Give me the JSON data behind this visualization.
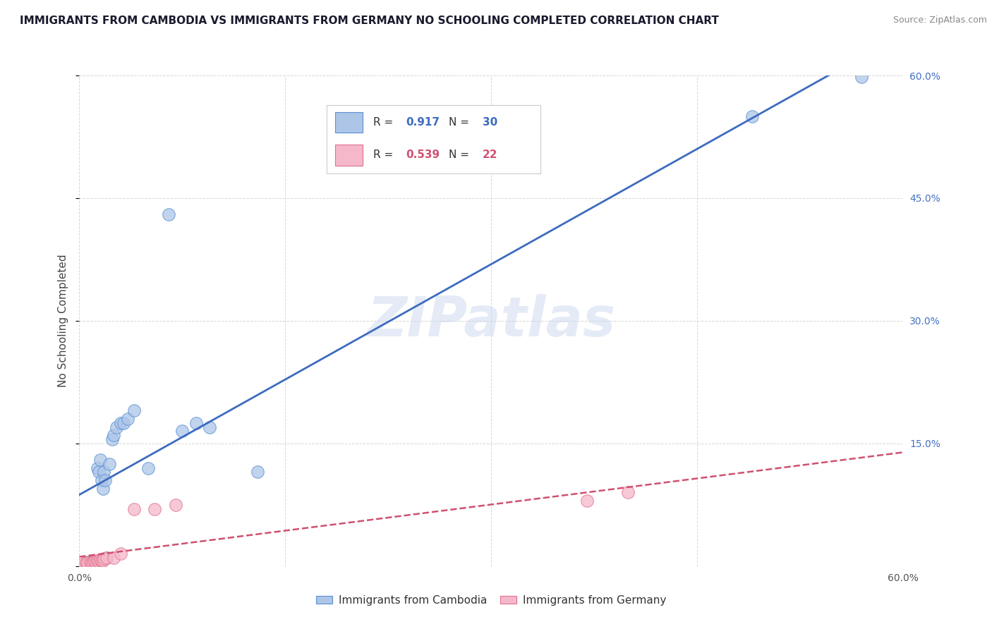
{
  "title": "IMMIGRANTS FROM CAMBODIA VS IMMIGRANTS FROM GERMANY NO SCHOOLING COMPLETED CORRELATION CHART",
  "source_text": "Source: ZipAtlas.com",
  "xlabel_legend": "Immigrants from Cambodia",
  "ylabel_legend": "Immigrants from Germany",
  "ylabel": "No Schooling Completed",
  "xlim": [
    0.0,
    0.6
  ],
  "ylim": [
    0.0,
    0.6
  ],
  "xticks": [
    0.0,
    0.15,
    0.3,
    0.45,
    0.6
  ],
  "yticks": [
    0.0,
    0.15,
    0.3,
    0.45,
    0.6
  ],
  "right_ytick_labels": [
    "",
    "15.0%",
    "30.0%",
    "45.0%",
    "60.0%"
  ],
  "bottom_xtick_labels": [
    "0.0%",
    "",
    "",
    "",
    "60.0%"
  ],
  "watermark": "ZIPatlas",
  "cambodia_R": 0.917,
  "cambodia_N": 30,
  "germany_R": 0.539,
  "germany_N": 22,
  "cambodia_color": "#adc6e8",
  "cambodia_edge_color": "#5b8fd4",
  "cambodia_line_color": "#3d6bbf",
  "germany_color": "#f5b8ca",
  "germany_edge_color": "#e0708a",
  "germany_line_color": "#d05070",
  "background_color": "#ffffff",
  "grid_color": "#cccccc",
  "title_color": "#1a1a2e",
  "right_axis_label_color": "#4472c4",
  "cambodia_x": [
    0.005,
    0.007,
    0.008,
    0.009,
    0.01,
    0.012,
    0.013,
    0.014,
    0.015,
    0.016,
    0.017,
    0.018,
    0.019,
    0.02,
    0.022,
    0.024,
    0.025,
    0.027,
    0.03,
    0.032,
    0.035,
    0.04,
    0.05,
    0.065,
    0.075,
    0.085,
    0.095,
    0.13,
    0.49,
    0.57
  ],
  "cambodia_y": [
    0.003,
    0.005,
    0.006,
    0.004,
    0.005,
    0.006,
    0.12,
    0.115,
    0.13,
    0.105,
    0.095,
    0.115,
    0.105,
    0.01,
    0.125,
    0.155,
    0.16,
    0.17,
    0.175,
    0.175,
    0.18,
    0.19,
    0.12,
    0.43,
    0.165,
    0.175,
    0.17,
    0.115,
    0.55,
    0.598
  ],
  "germany_x": [
    0.003,
    0.005,
    0.006,
    0.008,
    0.009,
    0.01,
    0.011,
    0.012,
    0.013,
    0.014,
    0.015,
    0.016,
    0.017,
    0.018,
    0.02,
    0.025,
    0.03,
    0.04,
    0.055,
    0.07,
    0.37,
    0.4
  ],
  "germany_y": [
    0.003,
    0.004,
    0.004,
    0.005,
    0.004,
    0.005,
    0.006,
    0.005,
    0.007,
    0.006,
    0.008,
    0.007,
    0.007,
    0.009,
    0.01,
    0.01,
    0.015,
    0.07,
    0.07,
    0.075,
    0.08,
    0.09
  ]
}
